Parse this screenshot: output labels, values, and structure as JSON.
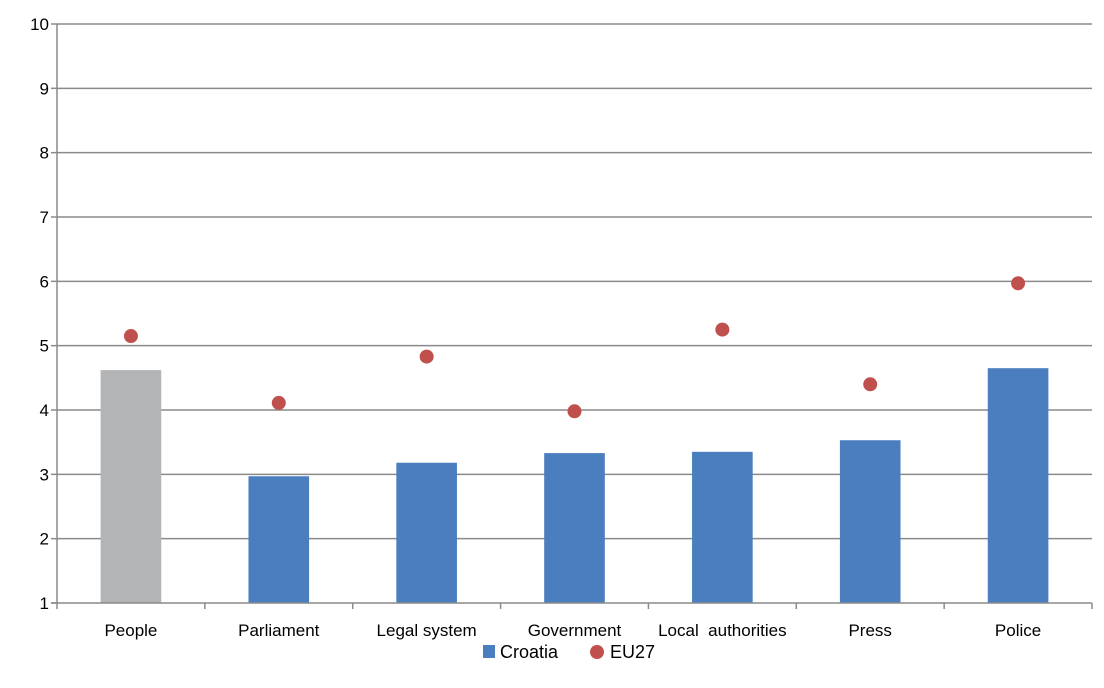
{
  "chart_data": {
    "type": "bar",
    "categories": [
      "People",
      "Parliament",
      "Legal system",
      "Government",
      "Local  authorities",
      "Press",
      "Police"
    ],
    "series": [
      {
        "name": "Croatia",
        "kind": "bar",
        "values": [
          4.62,
          2.97,
          3.18,
          3.33,
          3.35,
          3.53,
          4.65
        ],
        "colors": [
          "#b2b4b6",
          "#4a7ebf",
          "#4a7ebf",
          "#4a7ebf",
          "#4a7ebf",
          "#4a7ebf",
          "#4a7ebf"
        ]
      },
      {
        "name": "EU27",
        "kind": "scatter",
        "values": [
          5.15,
          4.11,
          4.83,
          3.98,
          5.25,
          4.4,
          5.97
        ],
        "color": "#c0504d"
      }
    ],
    "ylim": [
      1,
      10
    ],
    "yticks": [
      "1",
      "2",
      "3",
      "4",
      "5",
      "6",
      "7",
      "8",
      "9",
      "10"
    ],
    "grid": true,
    "legend": "bottom-center",
    "title": "",
    "xlabel": "",
    "ylabel": ""
  }
}
